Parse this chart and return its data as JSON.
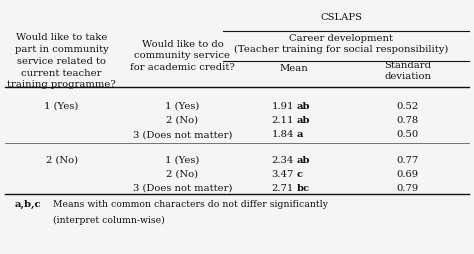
{
  "title": "CSLAPS",
  "col1_header_lines": [
    "Would like to take",
    "part in community",
    "service related to",
    "current teacher",
    "training programme?"
  ],
  "col2_header_lines": [
    "Would like to do",
    "community service",
    "for academic credit?"
  ],
  "col3_header": "Career development\n(Teacher training for social responsibility)",
  "subheader_mean": "Mean",
  "subheader_sd": "Standard\ndeviation",
  "rows": [
    {
      "col1": "1 (Yes)",
      "col2": "1 (Yes)",
      "mean": "1.91",
      "mean_super": "ab",
      "sd": "0.52"
    },
    {
      "col1": "",
      "col2": "2 (No)",
      "mean": "2.11",
      "mean_super": "ab",
      "sd": "0.78"
    },
    {
      "col1": "",
      "col2": "3 (Does not matter)",
      "mean": "1.84",
      "mean_super": "a",
      "sd": "0.50"
    },
    {
      "col1": "2 (No)",
      "col2": "1 (Yes)",
      "mean": "2.34",
      "mean_super": "ab",
      "sd": "0.77"
    },
    {
      "col1": "",
      "col2": "2 (No)",
      "mean": "3.47",
      "mean_super": "c",
      "sd": "0.69"
    },
    {
      "col1": "",
      "col2": "3 (Does not matter)",
      "mean": "2.71",
      "mean_super": "bc",
      "sd": "0.79"
    }
  ],
  "footnote_bold": "a,b,c",
  "footnote_text": "  Means with common characters do not differ significantly\n  (interpret column-wise)",
  "bg_color": "#f5f5f5",
  "text_color": "#111111",
  "font_size": 7.2
}
